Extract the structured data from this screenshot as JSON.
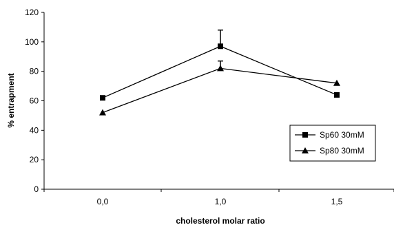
{
  "chart_data": {
    "type": "line",
    "title": "",
    "xlabel": "cholesterol molar ratio",
    "ylabel": "% entrapment",
    "categories": [
      "0,0",
      "1,0",
      "1,5"
    ],
    "ylim": [
      0,
      120
    ],
    "yticks": [
      0,
      20,
      40,
      60,
      80,
      100,
      120
    ],
    "grid": false,
    "legend_position": "right",
    "series": [
      {
        "name": "Sp60 30mM",
        "marker": "square",
        "color": "#000000",
        "values": [
          62,
          97,
          64
        ],
        "error_plus": [
          0,
          11,
          0
        ]
      },
      {
        "name": "Sp80 30mM",
        "marker": "triangle",
        "color": "#000000",
        "values": [
          52,
          82,
          72
        ],
        "error_plus": [
          0,
          5,
          0
        ]
      }
    ]
  }
}
